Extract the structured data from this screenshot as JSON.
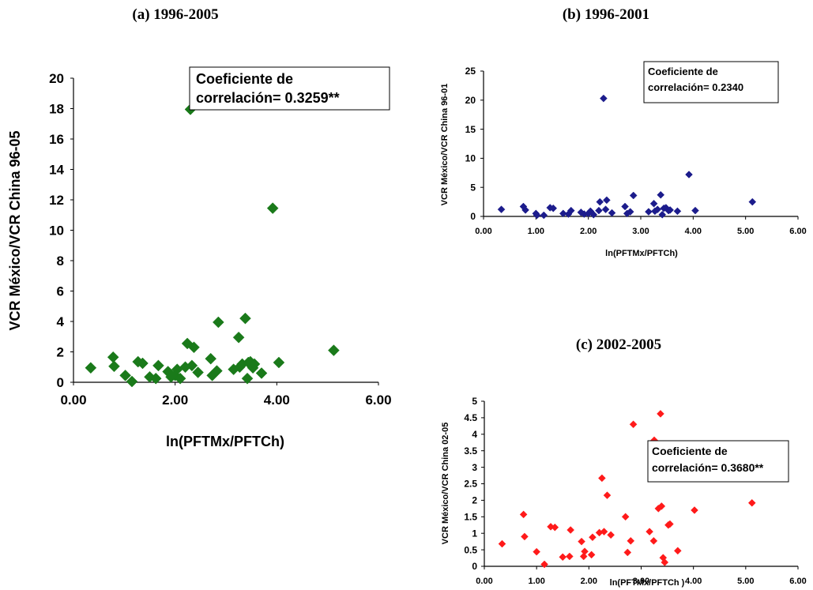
{
  "chart_data": [
    {
      "id": "a",
      "type": "scatter",
      "title": "(a) 1996-2005",
      "xlabel": "ln(PFTMx/PFTCh)",
      "ylabel": "VCR México/VCR China 96-05",
      "xlim": [
        0,
        6
      ],
      "ylim": [
        0,
        20
      ],
      "xticks": [
        "0.00",
        "2.00",
        "4.00",
        "6.00"
      ],
      "xtick_values": [
        0,
        2,
        4,
        6
      ],
      "yticks": [
        "0",
        "2",
        "4",
        "6",
        "8",
        "10",
        "12",
        "14",
        "16",
        "18",
        "20"
      ],
      "ytick_values": [
        0,
        2,
        4,
        6,
        8,
        10,
        12,
        14,
        16,
        18,
        20
      ],
      "annotation": [
        "Coeficiente de",
        "correlación= 0.3259**"
      ],
      "marker_color": "#1a7a1a",
      "marker": "diamond",
      "grid": false,
      "points": [
        [
          0.34,
          0.95
        ],
        [
          0.78,
          1.65
        ],
        [
          0.8,
          1.05
        ],
        [
          1.02,
          0.45
        ],
        [
          1.15,
          0.05
        ],
        [
          1.27,
          1.35
        ],
        [
          1.36,
          1.25
        ],
        [
          1.5,
          0.35
        ],
        [
          1.62,
          0.25
        ],
        [
          1.67,
          1.1
        ],
        [
          1.86,
          0.7
        ],
        [
          1.92,
          0.35
        ],
        [
          2.0,
          0.45
        ],
        [
          2.04,
          0.85
        ],
        [
          2.1,
          0.25
        ],
        [
          2.2,
          1.0
        ],
        [
          2.24,
          2.55
        ],
        [
          2.3,
          17.95
        ],
        [
          2.33,
          1.1
        ],
        [
          2.37,
          2.3
        ],
        [
          2.45,
          0.65
        ],
        [
          2.7,
          1.55
        ],
        [
          2.73,
          0.45
        ],
        [
          2.82,
          0.75
        ],
        [
          2.85,
          3.95
        ],
        [
          3.15,
          0.85
        ],
        [
          3.25,
          2.95
        ],
        [
          3.27,
          1.0
        ],
        [
          3.32,
          1.2
        ],
        [
          3.38,
          4.2
        ],
        [
          3.42,
          0.25
        ],
        [
          3.44,
          1.3
        ],
        [
          3.48,
          1.35
        ],
        [
          3.53,
          0.95
        ],
        [
          3.56,
          1.2
        ],
        [
          3.7,
          0.6
        ],
        [
          3.92,
          11.45
        ],
        [
          4.04,
          1.3
        ],
        [
          5.12,
          2.1
        ]
      ]
    },
    {
      "id": "b",
      "type": "scatter",
      "title": "(b) 1996-2001",
      "xlabel": "ln(PFTMx/PFTCh)",
      "ylabel": "VCR México/VCR China 96-01",
      "xlim": [
        0,
        6
      ],
      "ylim": [
        0,
        25
      ],
      "xticks": [
        "0.00",
        "1.00",
        "2.00",
        "3.00",
        "4.00",
        "5.00",
        "6.00"
      ],
      "xtick_values": [
        0,
        1,
        2,
        3,
        4,
        5,
        6
      ],
      "yticks": [
        "0",
        "5",
        "10",
        "15",
        "20",
        "25"
      ],
      "ytick_values": [
        0,
        5,
        10,
        15,
        20,
        25
      ],
      "annotation": [
        "Coeficiente de",
        "correlación= 0.2340"
      ],
      "marker_color": "#1c1c8c",
      "marker": "diamond",
      "grid": false,
      "points": [
        [
          0.34,
          1.2
        ],
        [
          0.76,
          1.7
        ],
        [
          0.8,
          1.1
        ],
        [
          1.0,
          0.5
        ],
        [
          1.02,
          0.2
        ],
        [
          1.15,
          0.2
        ],
        [
          1.27,
          1.5
        ],
        [
          1.33,
          1.4
        ],
        [
          1.52,
          0.5
        ],
        [
          1.62,
          0.4
        ],
        [
          1.67,
          1.0
        ],
        [
          1.86,
          0.7
        ],
        [
          1.92,
          0.4
        ],
        [
          2.0,
          0.5
        ],
        [
          2.04,
          0.9
        ],
        [
          2.1,
          0.3
        ],
        [
          2.2,
          1.0
        ],
        [
          2.22,
          2.5
        ],
        [
          2.29,
          20.3
        ],
        [
          2.33,
          1.2
        ],
        [
          2.35,
          2.8
        ],
        [
          2.45,
          0.6
        ],
        [
          2.7,
          1.7
        ],
        [
          2.74,
          0.5
        ],
        [
          2.8,
          0.8
        ],
        [
          2.86,
          3.6
        ],
        [
          3.15,
          0.8
        ],
        [
          3.25,
          2.2
        ],
        [
          3.27,
          0.9
        ],
        [
          3.32,
          1.2
        ],
        [
          3.38,
          3.7
        ],
        [
          3.41,
          0.3
        ],
        [
          3.44,
          1.4
        ],
        [
          3.48,
          1.5
        ],
        [
          3.53,
          1.0
        ],
        [
          3.56,
          1.1
        ],
        [
          3.7,
          0.9
        ],
        [
          3.92,
          7.2
        ],
        [
          4.04,
          1.0
        ],
        [
          5.13,
          2.5
        ]
      ]
    },
    {
      "id": "c",
      "type": "scatter",
      "title": "(c) 2002-2005",
      "xlabel": "ln(PFTMx/PFTCh )",
      "ylabel": "VCR México/VCR China 02-05",
      "xlim": [
        0,
        6
      ],
      "ylim": [
        0,
        5
      ],
      "xticks": [
        "0.00",
        "1.00",
        "2.00",
        "3.00",
        "4.00",
        "5.00",
        "6.00"
      ],
      "xtick_values": [
        0,
        1,
        2,
        3,
        4,
        5,
        6
      ],
      "yticks": [
        "0",
        "0.5",
        "1",
        "1.5",
        "2",
        "2.5",
        "3",
        "3.5",
        "4",
        "4.5",
        "5"
      ],
      "ytick_values": [
        0,
        0.5,
        1,
        1.5,
        2,
        2.5,
        3,
        3.5,
        4,
        4.5,
        5
      ],
      "annotation": [
        "Coeficiente de",
        "correlación= 0.3680**"
      ],
      "marker_color": "#ff1a1a",
      "marker": "diamond",
      "grid": false,
      "points": [
        [
          0.34,
          0.68
        ],
        [
          0.75,
          1.57
        ],
        [
          0.77,
          0.9
        ],
        [
          1.0,
          0.44
        ],
        [
          1.15,
          0.06
        ],
        [
          1.27,
          1.2
        ],
        [
          1.35,
          1.18
        ],
        [
          1.5,
          0.28
        ],
        [
          1.63,
          0.3
        ],
        [
          1.65,
          1.1
        ],
        [
          1.86,
          0.75
        ],
        [
          1.9,
          0.3
        ],
        [
          1.92,
          0.45
        ],
        [
          2.05,
          0.35
        ],
        [
          2.07,
          0.88
        ],
        [
          2.2,
          1.02
        ],
        [
          2.25,
          2.67
        ],
        [
          2.29,
          1.05
        ],
        [
          2.35,
          2.15
        ],
        [
          2.42,
          0.95
        ],
        [
          2.7,
          1.5
        ],
        [
          2.74,
          0.42
        ],
        [
          2.8,
          0.77
        ],
        [
          2.85,
          4.3
        ],
        [
          3.16,
          1.05
        ],
        [
          3.24,
          0.77
        ],
        [
          3.25,
          3.82
        ],
        [
          3.33,
          1.75
        ],
        [
          3.37,
          4.62
        ],
        [
          3.39,
          1.82
        ],
        [
          3.42,
          0.26
        ],
        [
          3.45,
          0.12
        ],
        [
          3.52,
          1.25
        ],
        [
          3.55,
          1.28
        ],
        [
          3.7,
          0.47
        ],
        [
          4.02,
          1.7
        ],
        [
          5.12,
          1.92
        ]
      ]
    }
  ]
}
